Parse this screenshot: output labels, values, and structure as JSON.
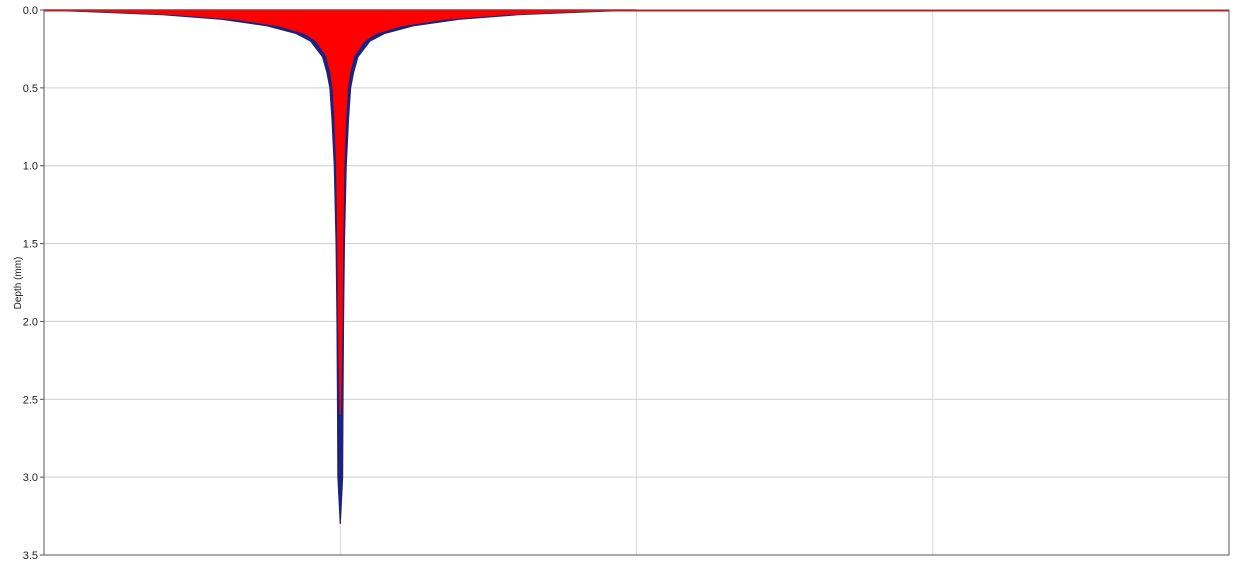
{
  "chart_data": {
    "type": "area",
    "title": "",
    "xlabel": "",
    "ylabel": "Depth (mm)",
    "ylim": [
      0,
      3.5
    ],
    "y_inverted": true,
    "yticks": [
      0,
      0.5,
      1.0,
      1.5,
      2.0,
      2.5,
      3.0,
      3.5
    ],
    "ytick_labels": [
      "0.0",
      "0.5",
      "1.0",
      "1.5",
      "2.0",
      "2.5",
      "3.0",
      "3.5"
    ],
    "xlim": [
      0,
      4
    ],
    "xgrid": [
      1,
      2,
      3
    ],
    "x_tick_labels_shown": false,
    "grid": true,
    "legend": "none",
    "series": [
      {
        "color": "#1a237e",
        "description_values": "half-width of profile (x units) vs depth (mm)",
        "center_x": 1.0,
        "profile": [
          {
            "depth": 0.0,
            "half_width": 1.0
          },
          {
            "depth": 0.01,
            "half_width": 0.85
          },
          {
            "depth": 0.03,
            "half_width": 0.6
          },
          {
            "depth": 0.06,
            "half_width": 0.4
          },
          {
            "depth": 0.1,
            "half_width": 0.25
          },
          {
            "depth": 0.15,
            "half_width": 0.15
          },
          {
            "depth": 0.2,
            "half_width": 0.1
          },
          {
            "depth": 0.3,
            "half_width": 0.06
          },
          {
            "depth": 0.4,
            "half_width": 0.045
          },
          {
            "depth": 0.5,
            "half_width": 0.035
          },
          {
            "depth": 0.7,
            "half_width": 0.028
          },
          {
            "depth": 1.0,
            "half_width": 0.02
          },
          {
            "depth": 1.5,
            "half_width": 0.014
          },
          {
            "depth": 2.0,
            "half_width": 0.011
          },
          {
            "depth": 2.6,
            "half_width": 0.009
          },
          {
            "depth": 3.0,
            "half_width": 0.008
          },
          {
            "depth": 3.3,
            "half_width": 0.0
          }
        ]
      },
      {
        "color": "#ff0000",
        "description_values": "half-width of profile (x units) vs depth (mm)",
        "center_x": 1.0,
        "profile": [
          {
            "depth": 0.0,
            "half_width": 1.0
          },
          {
            "depth": 0.01,
            "half_width": 0.8
          },
          {
            "depth": 0.03,
            "half_width": 0.55
          },
          {
            "depth": 0.06,
            "half_width": 0.35
          },
          {
            "depth": 0.1,
            "half_width": 0.21
          },
          {
            "depth": 0.15,
            "half_width": 0.12
          },
          {
            "depth": 0.2,
            "half_width": 0.08
          },
          {
            "depth": 0.3,
            "half_width": 0.045
          },
          {
            "depth": 0.4,
            "half_width": 0.032
          },
          {
            "depth": 0.5,
            "half_width": 0.024
          },
          {
            "depth": 0.7,
            "half_width": 0.018
          },
          {
            "depth": 1.0,
            "half_width": 0.012
          },
          {
            "depth": 1.5,
            "half_width": 0.008
          },
          {
            "depth": 2.0,
            "half_width": 0.006
          },
          {
            "depth": 2.6,
            "half_width": 0.0
          }
        ]
      }
    ],
    "surface_line": {
      "color": "#ff0000",
      "depth": 0.0
    }
  }
}
